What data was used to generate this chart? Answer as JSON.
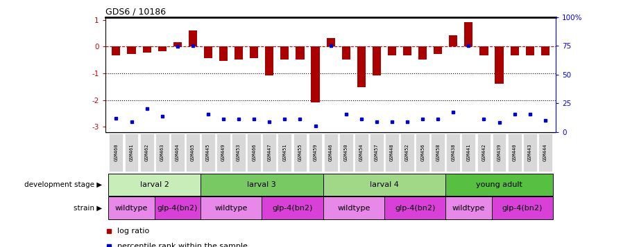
{
  "title": "GDS6 / 10186",
  "samples": [
    "GSM460",
    "GSM461",
    "GSM462",
    "GSM463",
    "GSM464",
    "GSM465",
    "GSM445",
    "GSM449",
    "GSM453",
    "GSM466",
    "GSM447",
    "GSM451",
    "GSM455",
    "GSM459",
    "GSM446",
    "GSM450",
    "GSM454",
    "GSM457",
    "GSM448",
    "GSM452",
    "GSM456",
    "GSM458",
    "GSM438",
    "GSM441",
    "GSM442",
    "GSM439",
    "GSM440",
    "GSM443",
    "GSM444"
  ],
  "log_ratio": [
    -0.32,
    -0.28,
    -0.22,
    -0.18,
    0.18,
    0.62,
    -0.42,
    -0.52,
    -0.48,
    -0.42,
    -1.08,
    -0.48,
    -0.48,
    -2.08,
    0.32,
    -0.48,
    -1.52,
    -1.08,
    -0.32,
    -0.32,
    -0.48,
    -0.28,
    0.42,
    0.92,
    -0.32,
    -1.38,
    -0.32,
    -0.32,
    -0.32
  ],
  "percentile": [
    8,
    5,
    17,
    10,
    75,
    76,
    12,
    7,
    7,
    7,
    5,
    7,
    7,
    1,
    76,
    12,
    7,
    5,
    5,
    5,
    7,
    7,
    14,
    76,
    7,
    4,
    12,
    12,
    6
  ],
  "dev_stage_groups": [
    {
      "label": "larval 2",
      "start": 0,
      "end": 5,
      "color": "#c8edb8"
    },
    {
      "label": "larval 3",
      "start": 6,
      "end": 13,
      "color": "#78c864"
    },
    {
      "label": "larval 4",
      "start": 14,
      "end": 21,
      "color": "#a0d888"
    },
    {
      "label": "young adult",
      "start": 22,
      "end": 28,
      "color": "#58c040"
    }
  ],
  "strain_groups": [
    {
      "label": "wildtype",
      "start": 0,
      "end": 2,
      "color": "#e888e8"
    },
    {
      "label": "glp-4(bn2)",
      "start": 3,
      "end": 5,
      "color": "#d840d8"
    },
    {
      "label": "wildtype",
      "start": 6,
      "end": 9,
      "color": "#e888e8"
    },
    {
      "label": "glp-4(bn2)",
      "start": 10,
      "end": 13,
      "color": "#d840d8"
    },
    {
      "label": "wildtype",
      "start": 14,
      "end": 17,
      "color": "#e888e8"
    },
    {
      "label": "glp-4(bn2)",
      "start": 18,
      "end": 21,
      "color": "#d840d8"
    },
    {
      "label": "wildtype",
      "start": 22,
      "end": 24,
      "color": "#e888e8"
    },
    {
      "label": "glp-4(bn2)",
      "start": 25,
      "end": 28,
      "color": "#d840d8"
    }
  ],
  "bar_color": "#aa0000",
  "dot_color": "#0000cc",
  "yaxis_color": "#cc0000",
  "ylim": [
    -3.2,
    1.1
  ],
  "yticks_left": [
    -3,
    -2,
    -1,
    0,
    1
  ],
  "yticks_right": [
    0,
    25,
    50,
    75,
    100
  ],
  "dotted_lines": [
    -1,
    -2
  ],
  "background_color": "#ffffff",
  "tick_label_bg": "#d8d8d8"
}
